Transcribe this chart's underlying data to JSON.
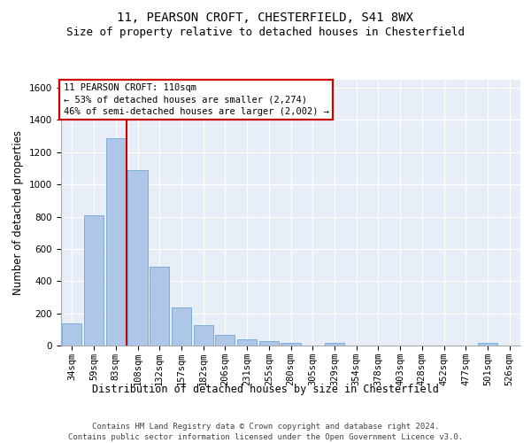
{
  "title1": "11, PEARSON CROFT, CHESTERFIELD, S41 8WX",
  "title2": "Size of property relative to detached houses in Chesterfield",
  "xlabel": "Distribution of detached houses by size in Chesterfield",
  "ylabel": "Number of detached properties",
  "categories": [
    "34sqm",
    "59sqm",
    "83sqm",
    "108sqm",
    "132sqm",
    "157sqm",
    "182sqm",
    "206sqm",
    "231sqm",
    "255sqm",
    "280sqm",
    "305sqm",
    "329sqm",
    "354sqm",
    "378sqm",
    "403sqm",
    "428sqm",
    "452sqm",
    "477sqm",
    "501sqm",
    "526sqm"
  ],
  "values": [
    135,
    810,
    1285,
    1090,
    490,
    235,
    128,
    65,
    37,
    27,
    15,
    2,
    15,
    2,
    2,
    2,
    2,
    2,
    2,
    15,
    2
  ],
  "bar_color": "#aec6e8",
  "bar_edge_color": "#5a9fd4",
  "vline_color": "#cc0000",
  "vline_x": 2.5,
  "annotation_line1": "11 PEARSON CROFT: 110sqm",
  "annotation_line2": "← 53% of detached houses are smaller (2,274)",
  "annotation_line3": "46% of semi-detached houses are larger (2,002) →",
  "annotation_box_edgecolor": "#cc0000",
  "annotation_box_facecolor": "white",
  "ylim": [
    0,
    1650
  ],
  "yticks": [
    0,
    200,
    400,
    600,
    800,
    1000,
    1200,
    1400,
    1600
  ],
  "bg_color": "#e8eef8",
  "grid_color": "white",
  "title_fontsize": 10,
  "subtitle_fontsize": 9,
  "ylabel_fontsize": 8.5,
  "xlabel_fontsize": 8.5,
  "tick_fontsize": 7.5,
  "annotation_fontsize": 7.5,
  "footnote": "Contains HM Land Registry data © Crown copyright and database right 2024.\nContains public sector information licensed under the Open Government Licence v3.0.",
  "footnote_fontsize": 6.5
}
